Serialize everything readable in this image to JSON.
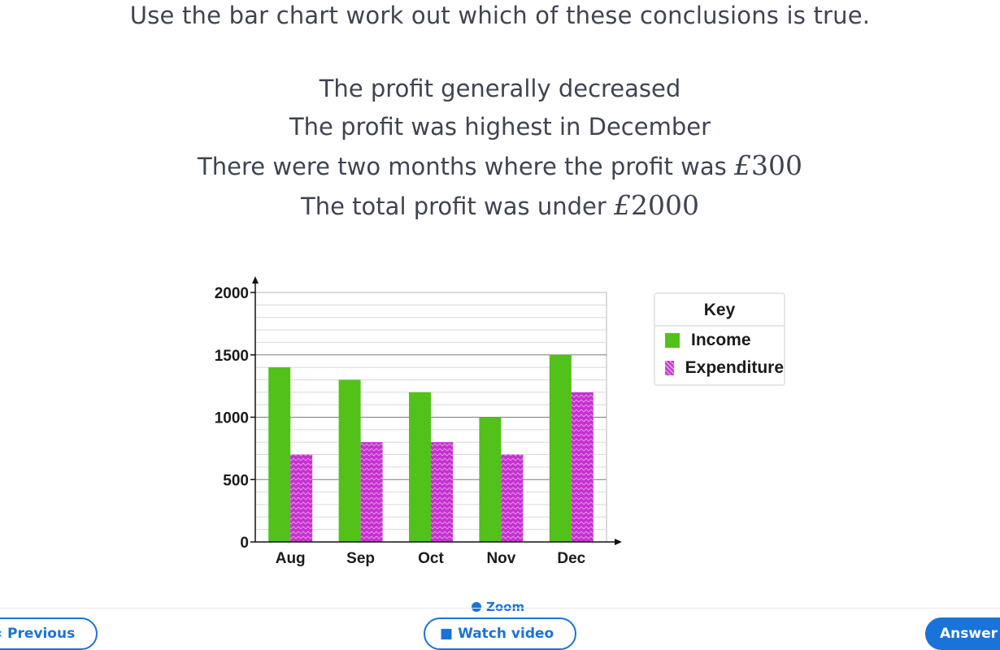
{
  "question": {
    "text": "Use the bar chart work out which of these conclusions is true."
  },
  "conclusions": [
    {
      "text": "The profit generally decreased",
      "math": ""
    },
    {
      "text": "The profit was highest in December",
      "math": ""
    },
    {
      "text": "There were two months where the profit was",
      "math": "£",
      "mathnum": "300"
    },
    {
      "text": "The total profit was under",
      "math": "£",
      "mathnum": "2000"
    }
  ],
  "chart_data": {
    "type": "bar",
    "title": "",
    "xlabel": "",
    "ylabel": "",
    "categories": [
      "Aug",
      "Sep",
      "Oct",
      "Nov",
      "Dec"
    ],
    "series": [
      {
        "name": "Income",
        "values": [
          1400,
          1300,
          1200,
          1000,
          1500
        ],
        "color": "#52c11a"
      },
      {
        "name": "Expenditure",
        "values": [
          700,
          800,
          800,
          700,
          1200
        ],
        "color": "#c531cf"
      }
    ],
    "ylim": [
      0,
      2000
    ],
    "yticks": [
      "0",
      "500",
      "1000",
      "1500",
      "2000"
    ],
    "grid": true,
    "legend": "right"
  },
  "key": {
    "title": "Key",
    "items": [
      {
        "label": "Income"
      },
      {
        "label": "Expenditure"
      }
    ]
  },
  "controls": {
    "zoom_label": "Zoom",
    "previous_label": "Previous",
    "watch_label": "Watch video",
    "answer_label": "Answer"
  },
  "icons": {
    "previous": "chevron-left-icon",
    "watch": "video-camera-icon",
    "zoom": "zoom-icon"
  }
}
